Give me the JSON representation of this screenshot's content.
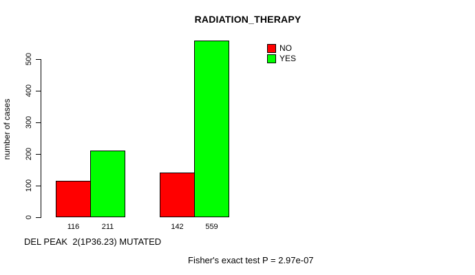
{
  "chart_data": {
    "type": "bar",
    "title": "RADIATION_THERAPY",
    "ylabel": "number of cases",
    "xlabel": "DEL PEAK  2(1P36.23) MUTATED",
    "series": [
      {
        "name": "NO",
        "color": "#ff0000",
        "values": [
          116,
          142
        ]
      },
      {
        "name": "YES",
        "color": "#00ff00",
        "values": [
          211,
          559
        ]
      }
    ],
    "yticks": [
      0,
      100,
      200,
      300,
      400,
      500
    ],
    "ylim": [
      0,
      565
    ],
    "grid": false,
    "legend_position": "top-right",
    "axis_color": "#000000",
    "background_color": "#ffffff",
    "annotation": "Fisher's exact test P = 2.97e-07"
  }
}
